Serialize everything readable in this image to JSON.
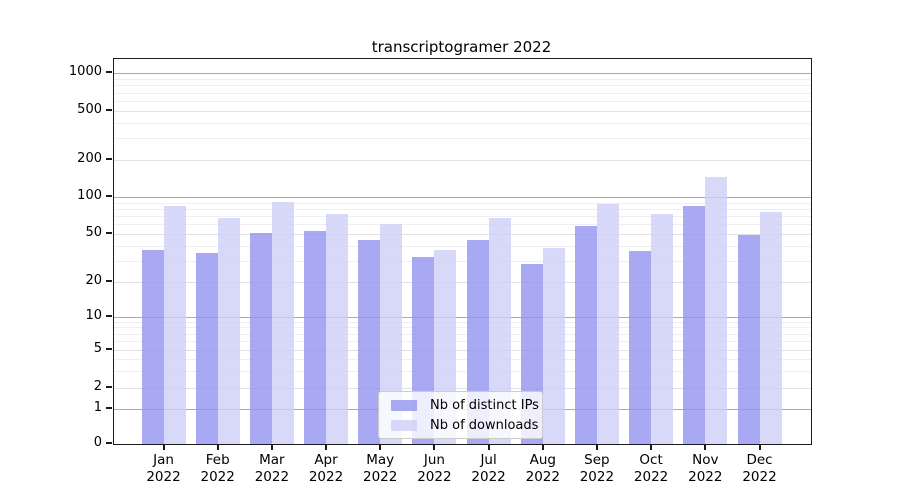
{
  "chart_data": {
    "type": "bar",
    "title": "transcriptogramer 2022",
    "yscale": "log-symlog-with-zero",
    "grid": true,
    "ylim": [
      0,
      1300
    ],
    "yticks": [
      0,
      1,
      2,
      5,
      10,
      20,
      50,
      100,
      200,
      500,
      1000
    ],
    "categories": [
      "Jan 2022",
      "Feb 2022",
      "Mar 2022",
      "Apr 2022",
      "May 2022",
      "Jun 2022",
      "Jul 2022",
      "Aug 2022",
      "Sep 2022",
      "Oct 2022",
      "Nov 2022",
      "Dec 2022"
    ],
    "series": [
      {
        "name": "Nb of distinct IPs",
        "color": "rgba(148,148,240,0.8)",
        "values": [
          37,
          35,
          51,
          53,
          45,
          32,
          45,
          28,
          58,
          36,
          85,
          49
        ]
      },
      {
        "name": "Nb of downloads",
        "color": "rgba(206,206,247,0.8)",
        "values": [
          85,
          68,
          91,
          73,
          60,
          37,
          68,
          38,
          88,
          73,
          145,
          75
        ]
      }
    ],
    "legend": {
      "position": "lower center",
      "labels": [
        "Nb of distinct IPs",
        "Nb of downloads"
      ]
    }
  }
}
